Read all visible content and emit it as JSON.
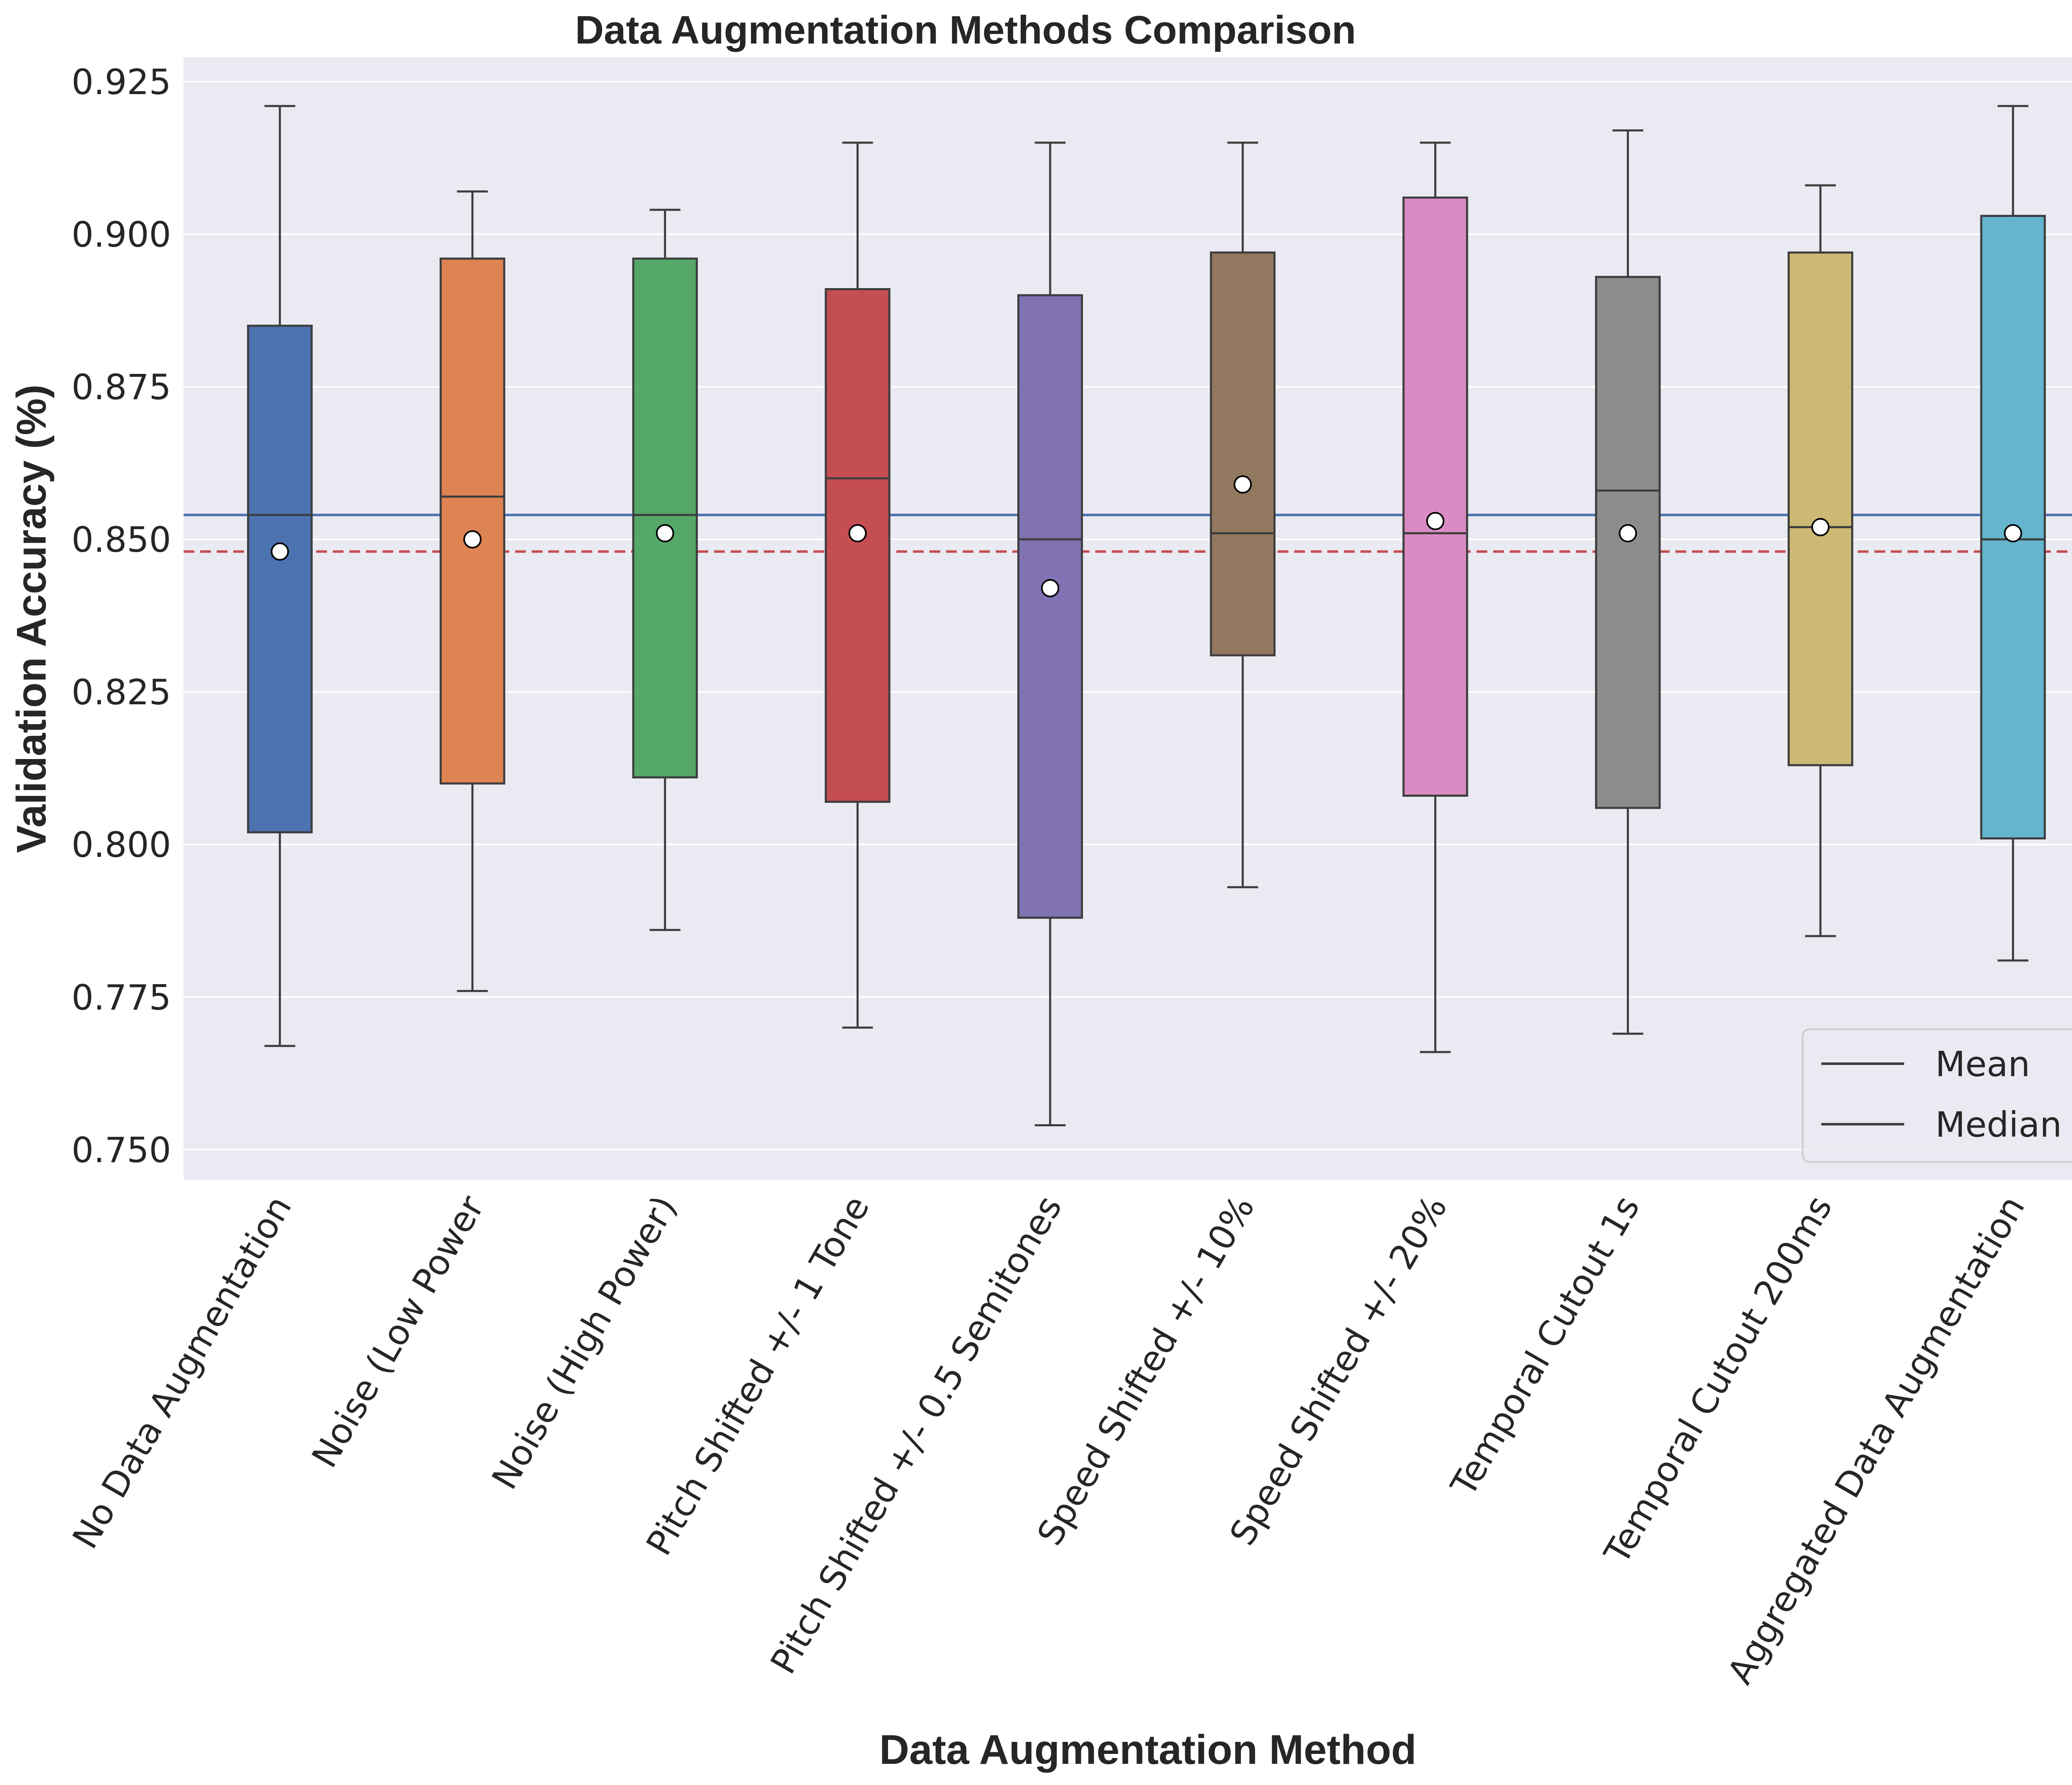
{
  "chart_data": {
    "type": "box",
    "title": "Data Augmentation Methods Comparison",
    "xlabel": "Data Augmentation Method",
    "ylabel": "Validation Accuracy (%)",
    "ylim": [
      0.745,
      0.929
    ],
    "yticks": [
      0.75,
      0.775,
      0.8,
      0.825,
      0.85,
      0.875,
      0.9,
      0.925
    ],
    "ytick_labels": [
      "0.750",
      "0.775",
      "0.800",
      "0.825",
      "0.850",
      "0.875",
      "0.900",
      "0.925"
    ],
    "grid": true,
    "categories": [
      "No Data Augmentation",
      "Noise (Low Power",
      "Noise (High Power)",
      "Pitch Shifted +/- 1 Tone",
      "Pitch Shifted +/- 0.5 Semitones",
      "Speed Shifted +/- 10%",
      "Speed Shifted +/- 20%",
      "Temporal Cutout 1s",
      "Temporal Cutout 200ms",
      "Aggregated Data Augmentation"
    ],
    "boxes": [
      {
        "min": 0.767,
        "q1": 0.802,
        "median": 0.854,
        "q3": 0.885,
        "max": 0.921,
        "mean": 0.848,
        "color": "#4c72b0"
      },
      {
        "min": 0.776,
        "q1": 0.81,
        "median": 0.857,
        "q3": 0.896,
        "max": 0.907,
        "mean": 0.85,
        "color": "#dd8452"
      },
      {
        "min": 0.786,
        "q1": 0.811,
        "median": 0.854,
        "q3": 0.896,
        "max": 0.904,
        "mean": 0.851,
        "color": "#55a868"
      },
      {
        "min": 0.77,
        "q1": 0.807,
        "median": 0.86,
        "q3": 0.891,
        "max": 0.915,
        "mean": 0.851,
        "color": "#c44e52"
      },
      {
        "min": 0.754,
        "q1": 0.788,
        "median": 0.85,
        "q3": 0.89,
        "max": 0.915,
        "mean": 0.842,
        "color": "#8172b3"
      },
      {
        "min": 0.793,
        "q1": 0.831,
        "median": 0.851,
        "q3": 0.897,
        "max": 0.915,
        "mean": 0.859,
        "color": "#937860"
      },
      {
        "min": 0.766,
        "q1": 0.808,
        "median": 0.851,
        "q3": 0.906,
        "max": 0.915,
        "mean": 0.853,
        "color": "#da8bc3"
      },
      {
        "min": 0.769,
        "q1": 0.806,
        "median": 0.858,
        "q3": 0.893,
        "max": 0.917,
        "mean": 0.851,
        "color": "#8c8c8c"
      },
      {
        "min": 0.785,
        "q1": 0.813,
        "median": 0.852,
        "q3": 0.897,
        "max": 0.908,
        "mean": 0.852,
        "color": "#ccb974"
      },
      {
        "min": 0.781,
        "q1": 0.801,
        "median": 0.85,
        "q3": 0.903,
        "max": 0.921,
        "mean": 0.851,
        "color": "#64b5cd"
      }
    ],
    "reference_lines": [
      {
        "value": 0.854,
        "style": "solid",
        "color": "#4c72b0"
      },
      {
        "value": 0.848,
        "style": "dashed",
        "color": "#c44e52"
      }
    ],
    "legend": {
      "position": "bottom-right",
      "entries": [
        "Mean",
        "Median"
      ]
    },
    "colors": {
      "plot_background": "#eaeaf2",
      "grid": "#ffffff",
      "box_edge": "#3d3d3d",
      "mean_marker_fill": "#ffffff"
    }
  }
}
